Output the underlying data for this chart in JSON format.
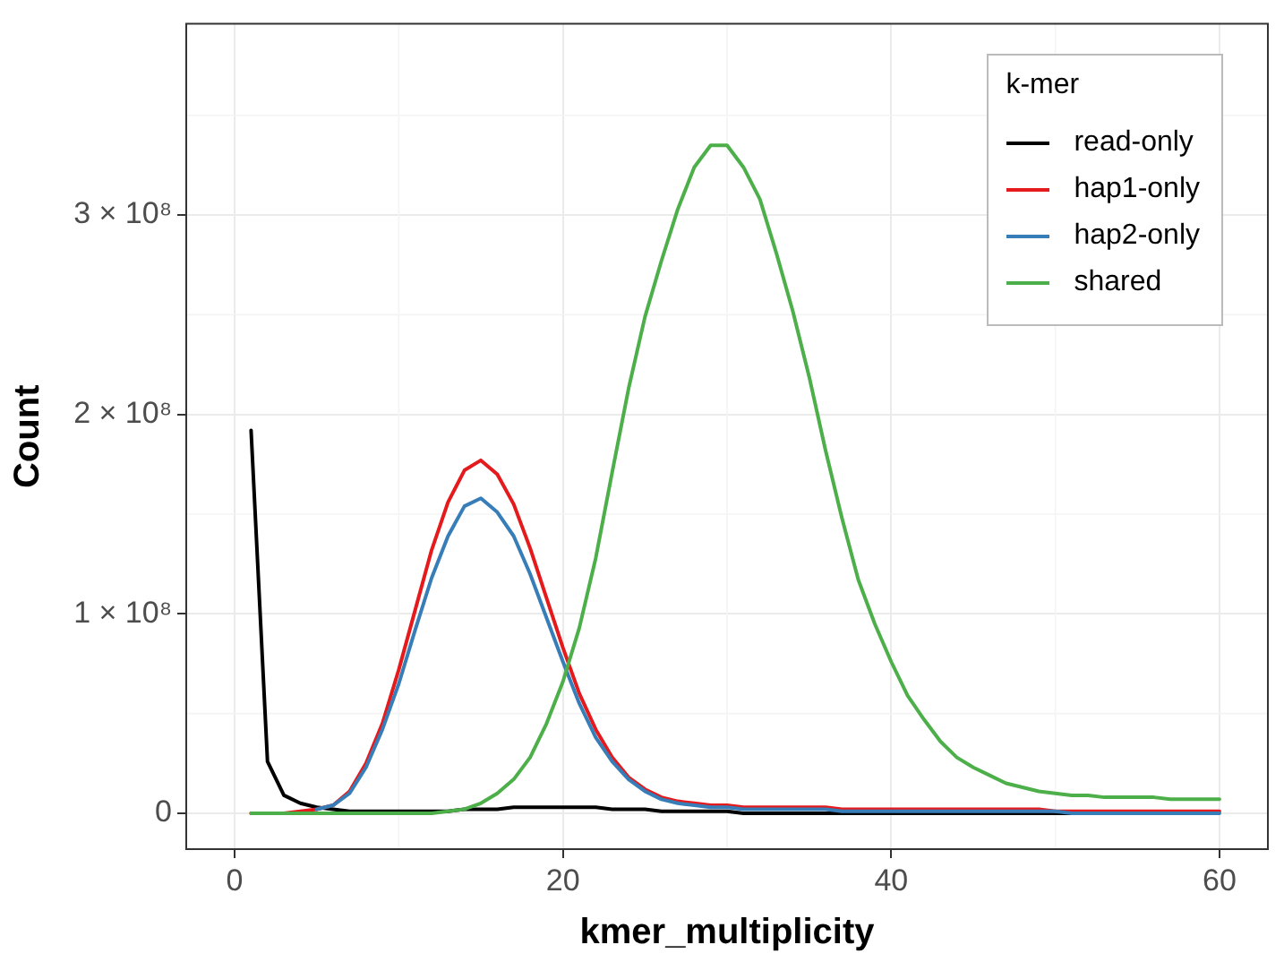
{
  "chart_data": {
    "type": "line",
    "xlabel": "kmer_multiplicity",
    "ylabel": "Count",
    "legend_title": "k-mer",
    "legend": "top right",
    "grid": true,
    "marker": "none",
    "line_style": "solid",
    "x": [
      1,
      2,
      3,
      4,
      5,
      6,
      7,
      8,
      9,
      10,
      11,
      12,
      13,
      14,
      15,
      16,
      17,
      18,
      19,
      20,
      21,
      22,
      23,
      24,
      25,
      26,
      27,
      28,
      29,
      30,
      31,
      32,
      33,
      34,
      35,
      36,
      37,
      38,
      39,
      40,
      41,
      42,
      43,
      44,
      45,
      46,
      47,
      48,
      49,
      50,
      51,
      52,
      53,
      54,
      55,
      56,
      57,
      58,
      59,
      60
    ],
    "xlim": [
      -2.95,
      62.95
    ],
    "xticks": [
      0,
      20,
      40,
      60
    ],
    "ylim": [
      -18000000,
      396000000
    ],
    "yticks": [
      0,
      {
        "value": 100000000,
        "label": "1 × 10⁸"
      },
      {
        "value": 200000000,
        "label": "2 × 10⁸"
      },
      {
        "value": 300000000,
        "label": "3 × 10⁸"
      }
    ],
    "series": [
      {
        "name": "read-only",
        "color": "#000000",
        "values": [
          192000000,
          26000000,
          9000000,
          5000000,
          3000000,
          2000000,
          1000000,
          1000000,
          1000000,
          1000000,
          1000000,
          1000000,
          1000000,
          2000000,
          2000000,
          2000000,
          3000000,
          3000000,
          3000000,
          3000000,
          3000000,
          3000000,
          2000000,
          2000000,
          2000000,
          1000000,
          1000000,
          1000000,
          1000000,
          1000000,
          0,
          0,
          0,
          0,
          0,
          0,
          0,
          0,
          0,
          0,
          0,
          0,
          0,
          0,
          0,
          0,
          0,
          0,
          0,
          0,
          0,
          0,
          null,
          null,
          null,
          null,
          null,
          null,
          null,
          null
        ]
      },
      {
        "name": "hap1-only",
        "color": "#e41a1c",
        "values": [
          0,
          0,
          0,
          1000000,
          2000000,
          4000000,
          11000000,
          25000000,
          45000000,
          72000000,
          102000000,
          132000000,
          156000000,
          172000000,
          177000000,
          170000000,
          155000000,
          133000000,
          108000000,
          83000000,
          60000000,
          42000000,
          28000000,
          18000000,
          12000000,
          8000000,
          6000000,
          5000000,
          4000000,
          4000000,
          3000000,
          3000000,
          3000000,
          3000000,
          3000000,
          3000000,
          2000000,
          2000000,
          2000000,
          2000000,
          2000000,
          2000000,
          2000000,
          2000000,
          2000000,
          2000000,
          2000000,
          2000000,
          2000000,
          1000000,
          1000000,
          1000000,
          1000000,
          1000000,
          1000000,
          1000000,
          1000000,
          1000000,
          1000000,
          1000000
        ]
      },
      {
        "name": "hap2-only",
        "color": "#377eb8",
        "values": [
          null,
          null,
          null,
          null,
          2000000,
          4000000,
          10000000,
          23000000,
          42000000,
          65000000,
          92000000,
          118000000,
          139000000,
          154000000,
          158000000,
          151000000,
          139000000,
          120000000,
          98000000,
          76000000,
          55000000,
          38000000,
          26000000,
          17000000,
          11000000,
          7000000,
          5000000,
          4000000,
          3000000,
          3000000,
          2000000,
          2000000,
          2000000,
          2000000,
          2000000,
          2000000,
          1000000,
          1000000,
          1000000,
          1000000,
          1000000,
          1000000,
          1000000,
          1000000,
          1000000,
          1000000,
          1000000,
          1000000,
          1000000,
          1000000,
          0,
          0,
          0,
          0,
          0,
          0,
          0,
          0,
          0,
          0
        ]
      },
      {
        "name": "shared",
        "color": "#4daf4a",
        "values": [
          0,
          0,
          0,
          0,
          0,
          0,
          0,
          0,
          0,
          0,
          0,
          0,
          1000000,
          2000000,
          5000000,
          10000000,
          17000000,
          28000000,
          45000000,
          66000000,
          93000000,
          128000000,
          171000000,
          213000000,
          249000000,
          277000000,
          303000000,
          324000000,
          335000000,
          335000000,
          324000000,
          308000000,
          281000000,
          252000000,
          219000000,
          182000000,
          148000000,
          117000000,
          95000000,
          76000000,
          59000000,
          47000000,
          36000000,
          28000000,
          23000000,
          19000000,
          15000000,
          13000000,
          11000000,
          10000000,
          9000000,
          9000000,
          8000000,
          8000000,
          8000000,
          8000000,
          7000000,
          7000000,
          7000000,
          7000000
        ]
      }
    ]
  }
}
